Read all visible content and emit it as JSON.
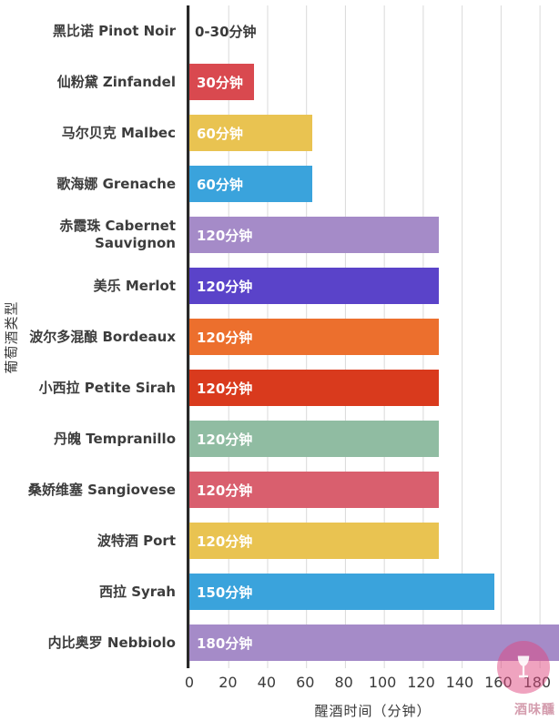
{
  "chart_data": {
    "type": "bar",
    "orientation": "horizontal",
    "title": "",
    "xlabel": "醒酒时间（分钟）",
    "ylabel": "葡萄酒类型",
    "x_axis": {
      "min": 0,
      "max": 180,
      "ticks": [
        0,
        20,
        40,
        60,
        80,
        100,
        120,
        140,
        160,
        180
      ],
      "plot_max": 190
    },
    "grid": true,
    "gridline_color": "#d9d9d9",
    "axis_line_color": "#282828",
    "rows": [
      {
        "category": "黑比诺 Pinot Noir",
        "minutes": 0,
        "display_minutes": 0,
        "label": "0-30分钟",
        "color": "#ffffff",
        "label_outside": true
      },
      {
        "category": "仙粉黛 Zinfandel",
        "minutes": 30,
        "display_minutes": 33,
        "label": "30分钟",
        "color": "#d9494f"
      },
      {
        "category": "马尔贝克 Malbec",
        "minutes": 60,
        "display_minutes": 63,
        "label": "60分钟",
        "color": "#e9c351"
      },
      {
        "category": "歌海娜 Grenache",
        "minutes": 60,
        "display_minutes": 63,
        "label": "60分钟",
        "color": "#3aa3dc"
      },
      {
        "category": "赤霞珠 Cabernet Sauvignon",
        "minutes": 120,
        "display_minutes": 128,
        "label": "120分钟",
        "color": "#a58bc8"
      },
      {
        "category": "美乐 Merlot",
        "minutes": 120,
        "display_minutes": 128,
        "label": "120分钟",
        "color": "#5a43c9"
      },
      {
        "category": "波尔多混酿 Bordeaux",
        "minutes": 120,
        "display_minutes": 128,
        "label": "120分钟",
        "color": "#ec6f2d"
      },
      {
        "category": "小西拉 Petite Sirah",
        "minutes": 120,
        "display_minutes": 128,
        "label": "120分钟",
        "color": "#d93a1d"
      },
      {
        "category": "丹魄 Tempranillo",
        "minutes": 120,
        "display_minutes": 128,
        "label": "120分钟",
        "color": "#90bca2"
      },
      {
        "category": "桑娇维塞 Sangiovese",
        "minutes": 120,
        "display_minutes": 128,
        "label": "120分钟",
        "color": "#d95f6e"
      },
      {
        "category": "波特酒 Port",
        "minutes": 120,
        "display_minutes": 128,
        "label": "120分钟",
        "color": "#e9c351"
      },
      {
        "category": "西拉 Syrah",
        "minutes": 150,
        "display_minutes": 157,
        "label": "150分钟",
        "color": "#3aa3dc"
      },
      {
        "category": "内比奥罗 Nebbiolo",
        "minutes": 180,
        "display_minutes": 190,
        "label": "180分钟",
        "color": "#a58bc8"
      }
    ]
  },
  "watermark": {
    "text": "酒味醺",
    "logo": "wine-glass-in-circle",
    "color": "#e04880"
  }
}
